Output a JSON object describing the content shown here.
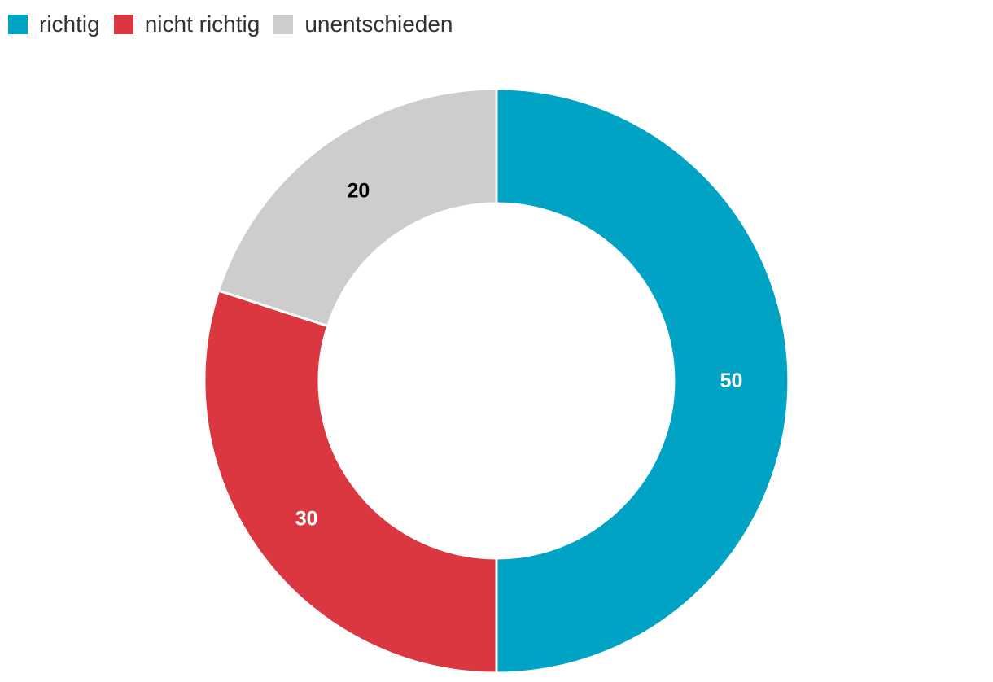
{
  "chart_data": {
    "type": "pie",
    "donut": true,
    "title": "",
    "categories": [
      "richtig",
      "nicht richtig",
      "unentschieden"
    ],
    "values": [
      50,
      30,
      20
    ],
    "colors": [
      "#00a3c3",
      "#db3740",
      "#cdcdcd"
    ],
    "label_colors": [
      "#ffffff",
      "#ffffff",
      "#000000"
    ],
    "legend": {
      "position": "top-left",
      "entries": [
        {
          "label": "richtig",
          "color": "#00a3c3"
        },
        {
          "label": "nicht richtig",
          "color": "#db3740"
        },
        {
          "label": "unentschieden",
          "color": "#cdcdcd"
        }
      ]
    }
  }
}
